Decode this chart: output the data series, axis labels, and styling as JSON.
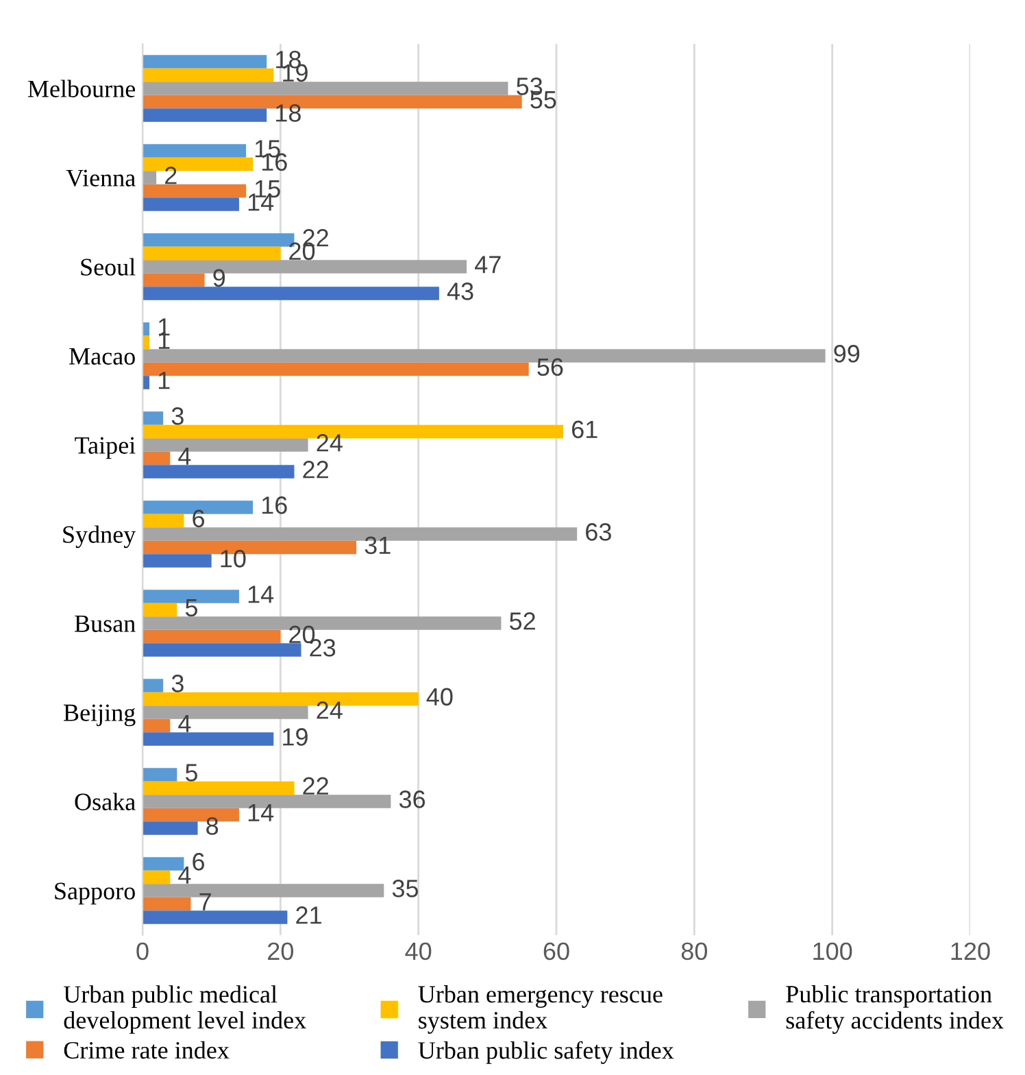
{
  "chart_data": {
    "type": "bar",
    "orientation": "horizontal",
    "categories": [
      "Melbourne",
      "Vienna",
      "Seoul",
      "Macao",
      "Taipei",
      "Sydney",
      "Busan",
      "Beijing",
      "Osaka",
      "Sapporo"
    ],
    "series": [
      {
        "name": "Urban public medical development level index",
        "color": "#5b9bd5",
        "values": [
          18,
          15,
          22,
          1,
          3,
          16,
          14,
          3,
          5,
          6
        ]
      },
      {
        "name": "Urban emergency rescue system index",
        "color": "#ffc000",
        "values": [
          19,
          16,
          20,
          1,
          61,
          6,
          5,
          40,
          22,
          4
        ]
      },
      {
        "name": "Public transportation safety accidents index",
        "color": "#a5a5a5",
        "values": [
          53,
          2,
          47,
          99,
          24,
          63,
          52,
          24,
          36,
          35
        ]
      },
      {
        "name": "Crime rate index",
        "color": "#ed7d31",
        "values": [
          55,
          15,
          9,
          56,
          4,
          31,
          20,
          4,
          14,
          7
        ]
      },
      {
        "name": "Urban public safety index",
        "color": "#4472c4",
        "values": [
          18,
          14,
          43,
          1,
          22,
          10,
          23,
          19,
          8,
          21
        ]
      }
    ],
    "xlim": [
      0,
      120
    ],
    "xticks": [
      0,
      20,
      40,
      60,
      80,
      100,
      120
    ],
    "grid": "x",
    "legend": "bottom",
    "data_labels": true
  }
}
